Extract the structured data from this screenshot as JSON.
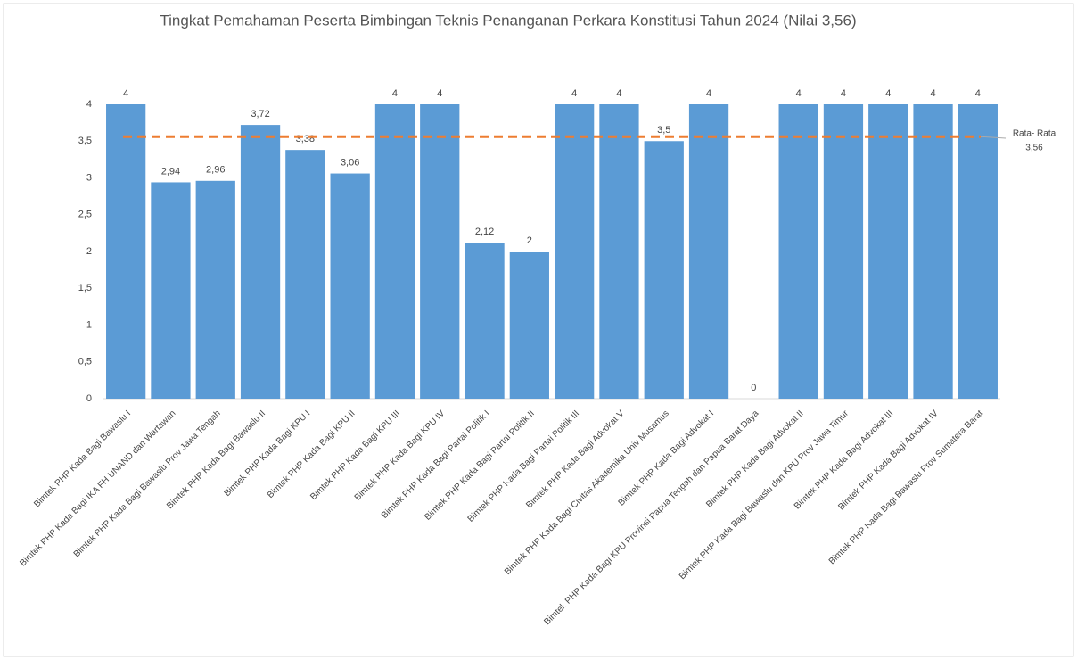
{
  "chart_data": {
    "type": "bar",
    "title": "Tingkat Pemahaman Peserta Bimbingan Teknis Penanganan Perkara Konstitusi Tahun 2024 (Nilai 3,56)",
    "categories": [
      "Bimtek PHP Kada Bagi Bawaslu I",
      "Bimtek PHP Kada Bagi IKA FH UNAND dan Wartawan",
      "Bimtek PHP Kada Bagi Bawaslu Prov Jawa Tengah",
      "Bimtek PHP Kada Bagi Bawaslu II",
      "Bimtek PHP Kada Bagi KPU I",
      "Bimtek PHP Kada Bagi KPU II",
      "Bimtek PHP Kada Bagi KPU III",
      "Bimtek PHP Kada Bagi KPU IV",
      "Bimtek PHP Kada Bagi Partai Politik I",
      "Bimtek PHP Kada Bagi Partai Politik II",
      "Bimtek PHP Kada Bagi Partai Politik III",
      "Bimtek PHP Kada Bagi Advokat V",
      "Bimtek PHP Kada Bagi Civitas Akademika Univ Musamus",
      "Bimtek PHP Kada Bagi Advokat I",
      "Bimtek PHP Kada Bagi KPU Provinsi Papua Tengah dan Papua Barat Daya",
      "Bimtek PHP Kada Bagi Advokat II",
      "Bimtek PHP Kada Bagi Bawaslu dan KPU Prov Jawa Timur",
      "Bimtek PHP Kada Bagi Advokat III",
      "Bimtek PHP Kada Bagi Advokat IV",
      "Bimtek PHP Kada Bagi Bawaslu Prov Sumatera Barat"
    ],
    "values": [
      4,
      2.94,
      2.96,
      3.72,
      3.38,
      3.06,
      4,
      4,
      2.12,
      2,
      4,
      4,
      3.5,
      4,
      0,
      4,
      4,
      4,
      4,
      4
    ],
    "value_labels": [
      "4",
      "2,94",
      "2,96",
      "3,72",
      "3,38",
      "3,06",
      "4",
      "4",
      "2,12",
      "2",
      "4",
      "4",
      "3,5",
      "4",
      "0",
      "4",
      "4",
      "4",
      "4",
      "4"
    ],
    "color": "#5b9bd5",
    "ylim": [
      0,
      4
    ],
    "yticks": [
      0,
      {
        "value": 0.5,
        "label": "0,5"
      },
      1,
      {
        "value": 1.5,
        "label": "1,5"
      },
      2,
      {
        "value": 2.5,
        "label": "2,5"
      },
      3,
      {
        "value": 3.5,
        "label": "3,5"
      },
      4
    ],
    "average": {
      "name": "Rata- Rata",
      "value": 3.56,
      "label": "3,56",
      "color": "#ed7d31"
    }
  }
}
